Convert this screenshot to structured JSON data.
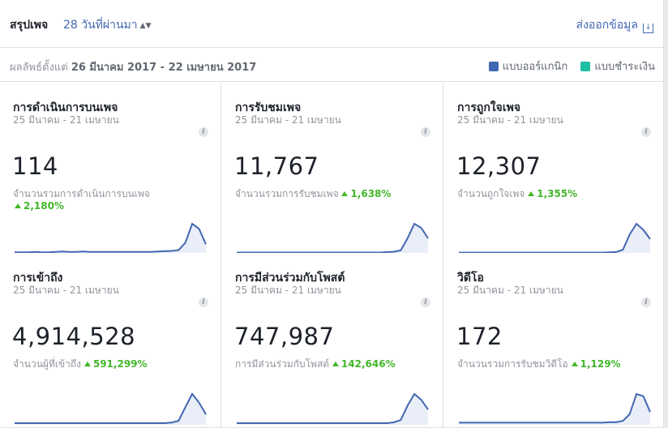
{
  "header": {
    "title": "สรุปเพจ",
    "range": "28 วันที่ผ่านมา",
    "export": "ส่งออกข้อมูล"
  },
  "subheader": {
    "results_prefix": "ผลลัพธ์ตั้งแต่",
    "results_range": "26 มีนาคม 2017 - 22 เมษายน 2017",
    "legend": [
      {
        "label": "แบบออร์แกนิก",
        "color": "#4267b2"
      },
      {
        "label": "แบบชำระเงิน",
        "color": "#1fbda1"
      }
    ]
  },
  "cards": [
    {
      "title": "การดำเนินการบนเพจ",
      "date": "25 มีนาคม - 21 เมษายน",
      "value": "114",
      "desc": "จำนวนรวมการดำเนินการบนเพจ",
      "pct": "2,180%",
      "series": [
        2,
        2,
        2,
        3,
        2,
        2,
        3,
        4,
        3,
        3,
        4,
        3,
        3,
        3,
        3,
        3,
        3,
        3,
        3,
        3,
        3,
        4,
        5,
        6,
        8,
        30,
        85,
        70,
        25
      ]
    },
    {
      "title": "การรับชมเพจ",
      "date": "25 มีนาคม - 21 เมษายน",
      "value": "11,767",
      "desc": "จำนวนรวมการรับชมเพจ",
      "pct": "1,638%",
      "series": [
        1,
        1,
        1,
        1,
        1,
        1,
        1,
        1,
        1,
        1,
        1,
        1,
        1,
        1,
        1,
        1,
        1,
        1,
        1,
        1,
        1,
        1,
        2,
        3,
        6,
        35,
        70,
        60,
        35
      ]
    },
    {
      "title": "การถูกใจเพจ",
      "date": "25 มีนาคม - 21 เมษายน",
      "value": "12,307",
      "desc": "จำนวนถูกใจเพจ",
      "pct": "1,355%",
      "series": [
        1,
        1,
        1,
        1,
        1,
        1,
        1,
        1,
        1,
        1,
        1,
        1,
        1,
        1,
        1,
        1,
        1,
        1,
        1,
        1,
        1,
        1,
        2,
        3,
        10,
        60,
        95,
        75,
        45
      ]
    },
    {
      "title": "การเข้าถึง",
      "date": "25 มีนาคม - 21 เมษายน",
      "value": "4,914,528",
      "desc": "จำนวนผู้ที่เข้าถึง",
      "pct": "591,299%",
      "series": [
        0,
        0,
        0,
        0,
        0,
        0,
        0,
        0,
        0,
        0,
        0,
        0,
        0,
        0,
        0,
        0,
        0,
        0,
        0,
        0,
        0,
        0,
        0,
        2,
        8,
        55,
        100,
        70,
        30
      ]
    },
    {
      "title": "การมีส่วนร่วมกับโพสต์",
      "date": "25 มีนาคม - 21 เมษายน",
      "value": "747,987",
      "desc": "การมีส่วนร่วมกับโพสต์",
      "pct": "142,646%",
      "series": [
        0,
        0,
        0,
        0,
        0,
        0,
        0,
        0,
        0,
        0,
        0,
        0,
        0,
        0,
        0,
        0,
        0,
        0,
        0,
        0,
        0,
        0,
        0,
        2,
        8,
        45,
        75,
        60,
        35
      ]
    },
    {
      "title": "วิดีโอ",
      "date": "25 มีนาคม - 21 เมษายน",
      "value": "172",
      "desc": "จำนวนรวมการรับชมวิดีโอ",
      "pct": "1,129%",
      "series": [
        1,
        1,
        1,
        1,
        1,
        1,
        1,
        1,
        1,
        1,
        1,
        1,
        1,
        1,
        1,
        1,
        1,
        1,
        1,
        1,
        1,
        1,
        2,
        2,
        5,
        20,
        65,
        60,
        25
      ]
    }
  ]
}
